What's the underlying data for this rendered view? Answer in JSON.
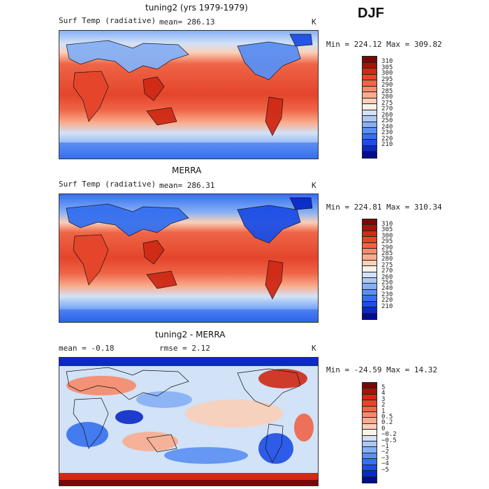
{
  "season": "DJF",
  "colors": {
    "temp": [
      "#000e8a",
      "#0a29c8",
      "#1c4ee6",
      "#3570ef",
      "#5a8ff3",
      "#86b0f5",
      "#adc8f4",
      "#d2e2f7",
      "#fbf1e6",
      "#fad0b8",
      "#f9ad8e",
      "#f78a6a",
      "#ef6547",
      "#e4452b",
      "#cf2a16",
      "#a3140b",
      "#7a0808"
    ],
    "diff": [
      "#000e8a",
      "#0a29c8",
      "#1c4ee6",
      "#3570ef",
      "#5a8ff3",
      "#86b0f5",
      "#adc8f4",
      "#d2e2f7",
      "#fbf1e6",
      "#fad0b8",
      "#f9ad8e",
      "#f78a6a",
      "#ef6547",
      "#e4452b",
      "#cf2a16",
      "#a3140b",
      "#7a0808"
    ]
  },
  "panels": [
    {
      "title": "tuning2 (yrs 1979-1979)",
      "left_label": "Surf Temp (radiative)",
      "mean_text": "mean= 286.13",
      "rmse_text": "",
      "unit": "K",
      "minmax": "Min = 224.12 Max = 309.82",
      "colorbar_labels": [
        "310",
        "305",
        "300",
        "295",
        "290",
        "285",
        "280",
        "275",
        "270",
        "260",
        "250",
        "240",
        "230",
        "220",
        "210"
      ],
      "kind": "temp"
    },
    {
      "title": "MERRA",
      "left_label": "Surf Temp (radiative)",
      "mean_text": "mean= 286.31",
      "rmse_text": "",
      "unit": "K",
      "minmax": "Min = 224.81 Max = 310.34",
      "colorbar_labels": [
        "310",
        "305",
        "300",
        "295",
        "290",
        "285",
        "280",
        "275",
        "270",
        "260",
        "250",
        "240",
        "230",
        "220",
        "210"
      ],
      "kind": "temp"
    },
    {
      "title": "tuning2 - MERRA",
      "left_label": "mean =   -0.18",
      "mean_text": "",
      "rmse_text": "rmse =    2.12",
      "unit": "K",
      "minmax": "Min = -24.59 Max =  14.32",
      "colorbar_labels": [
        "5",
        "4",
        "3",
        "2",
        "1",
        "0.5",
        "0.2",
        "0",
        "−0.2",
        "−0.5",
        "−1",
        "−2",
        "−3",
        "−4",
        "−5"
      ],
      "kind": "diff"
    }
  ]
}
